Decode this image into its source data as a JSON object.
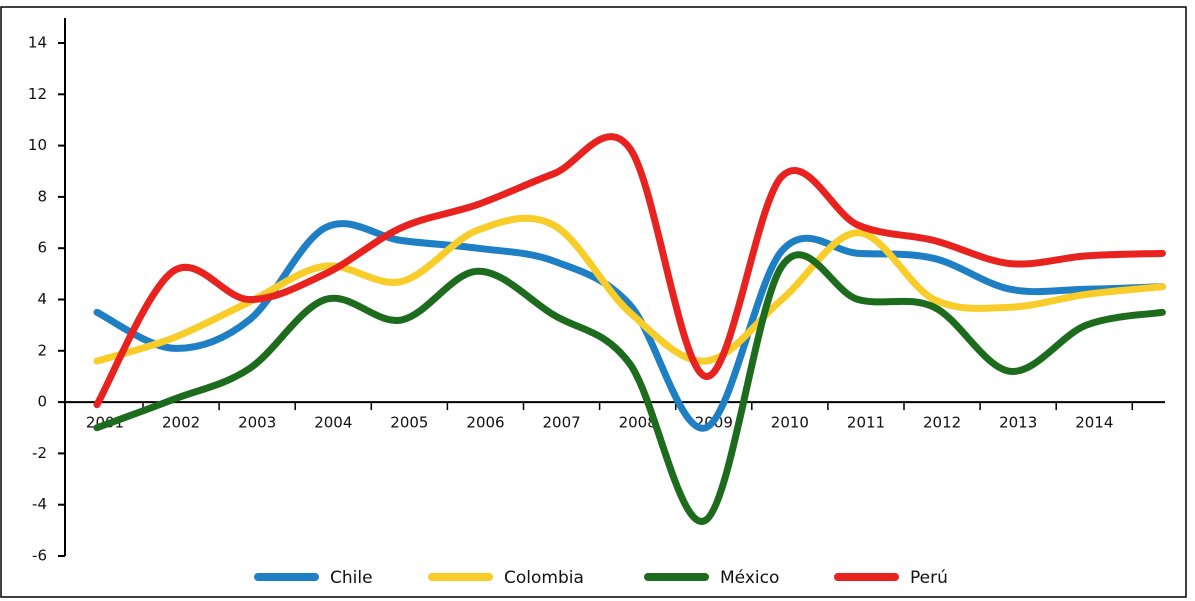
{
  "chart_data": {
    "type": "line",
    "categories": [
      "2001",
      "2002",
      "2003",
      "2004",
      "2005",
      "2006",
      "2007",
      "2008",
      "2009",
      "2010",
      "2011",
      "2012",
      "2013",
      "2014",
      null
    ],
    "series": [
      {
        "name": "Chile",
        "color": "#1f7fc4",
        "values": [
          3.5,
          2.1,
          3.2,
          6.8,
          6.3,
          6.0,
          5.5,
          3.8,
          -1.0,
          5.9,
          5.8,
          5.6,
          4.4,
          4.4,
          4.5
        ]
      },
      {
        "name": "Colombia",
        "color": "#f8cd2a",
        "values": [
          1.6,
          2.5,
          3.9,
          5.3,
          4.7,
          6.7,
          6.9,
          3.5,
          1.6,
          4.0,
          6.6,
          4.0,
          3.7,
          4.2,
          4.5
        ]
      },
      {
        "name": "México",
        "color": "#1d6b1d",
        "values": [
          -1.0,
          0.1,
          1.3,
          4.0,
          3.2,
          5.1,
          3.4,
          1.5,
          -4.6,
          5.3,
          4.0,
          3.7,
          1.2,
          3.0,
          3.5
        ]
      },
      {
        "name": "Perú",
        "color": "#e8231f",
        "values": [
          -0.1,
          5.1,
          4.0,
          5.0,
          6.8,
          7.7,
          8.9,
          9.9,
          1.0,
          8.8,
          6.9,
          6.3,
          5.4,
          5.7,
          5.8
        ]
      }
    ],
    "ylim": [
      -6,
      14
    ],
    "yticks": [
      -6,
      -4,
      -2,
      0,
      2,
      4,
      6,
      8,
      10,
      12,
      14
    ],
    "legend": "bottom"
  }
}
